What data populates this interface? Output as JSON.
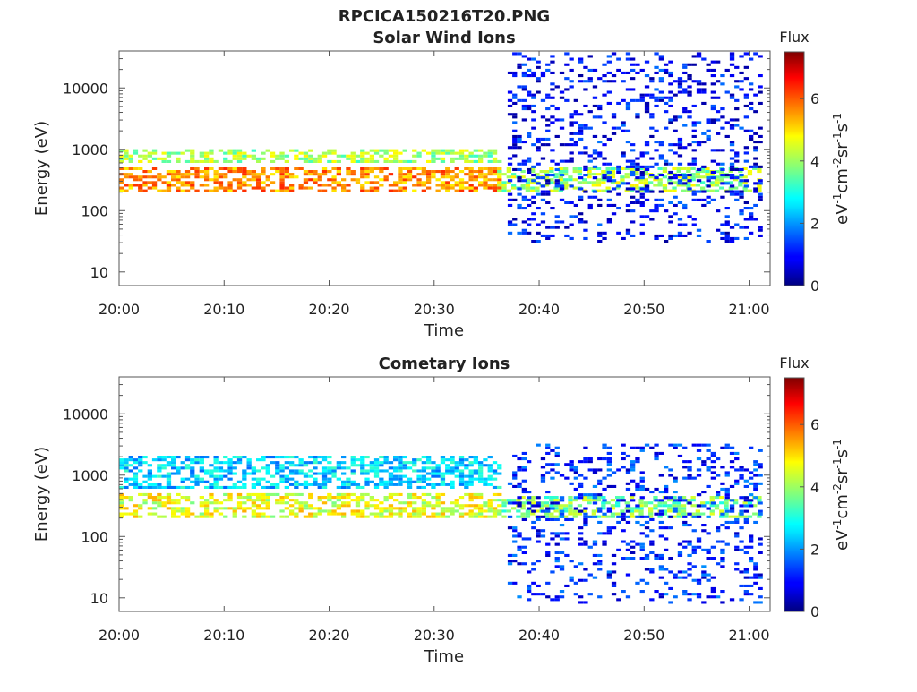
{
  "figure": {
    "title": "RPCICA150216T20.PNG"
  },
  "chart_data": [
    {
      "type": "heatmap",
      "title": "Solar Wind Ions",
      "xlabel": "Time",
      "ylabel": "Energy (eV)",
      "x_ticks": [
        "20:00",
        "20:10",
        "20:20",
        "20:30",
        "20:40",
        "20:50",
        "21:00"
      ],
      "x_range_minutes": [
        0,
        62
      ],
      "y_scale": "log",
      "y_ticks": [
        "10",
        "100",
        "1000",
        "10000"
      ],
      "y_range": [
        6,
        40000
      ],
      "colorbar": {
        "title": "Flux",
        "label": "eV-1cm-2sr-1s-1",
        "range": [
          0,
          7.5
        ],
        "ticks": [
          "0",
          "2",
          "4",
          "6"
        ],
        "colormap": "jet"
      },
      "features": [
        {
          "time_start": "20:00",
          "time_end": "20:36",
          "energy_eV": [
            200,
            500
          ],
          "flux": 5.5
        },
        {
          "time_start": "20:36",
          "time_end": "21:01",
          "energy_eV": [
            200,
            500
          ],
          "flux": 4.0
        },
        {
          "time_start": "20:00",
          "time_end": "20:36",
          "energy_eV": [
            600,
            1000
          ],
          "flux": 4.0
        },
        {
          "time_start": "20:37",
          "time_end": "21:01",
          "energy_eV": [
            30,
            40000
          ],
          "flux": 1.0
        }
      ]
    },
    {
      "type": "heatmap",
      "title": "Cometary Ions",
      "xlabel": "Time",
      "ylabel": "Energy (eV)",
      "x_ticks": [
        "20:00",
        "20:10",
        "20:20",
        "20:30",
        "20:40",
        "20:50",
        "21:00"
      ],
      "x_range_minutes": [
        0,
        62
      ],
      "y_scale": "log",
      "y_ticks": [
        "10",
        "100",
        "1000",
        "10000"
      ],
      "y_range": [
        6,
        40000
      ],
      "colorbar": {
        "title": "Flux",
        "label": "eV-1cm-2sr-1s-1",
        "range": [
          0,
          7.5
        ],
        "ticks": [
          "0",
          "2",
          "4",
          "6"
        ],
        "colormap": "jet"
      },
      "features": [
        {
          "time_start": "20:00",
          "time_end": "20:36",
          "energy_eV": [
            200,
            500
          ],
          "flux": 4.5
        },
        {
          "time_start": "20:36",
          "time_end": "21:01",
          "energy_eV": [
            200,
            450
          ],
          "flux": 3.8
        },
        {
          "time_start": "20:00",
          "time_end": "20:36",
          "energy_eV": [
            600,
            2000
          ],
          "flux": 2.5
        },
        {
          "time_start": "20:37",
          "time_end": "21:01",
          "energy_eV": [
            8,
            3000
          ],
          "flux": 1.2
        }
      ]
    }
  ]
}
